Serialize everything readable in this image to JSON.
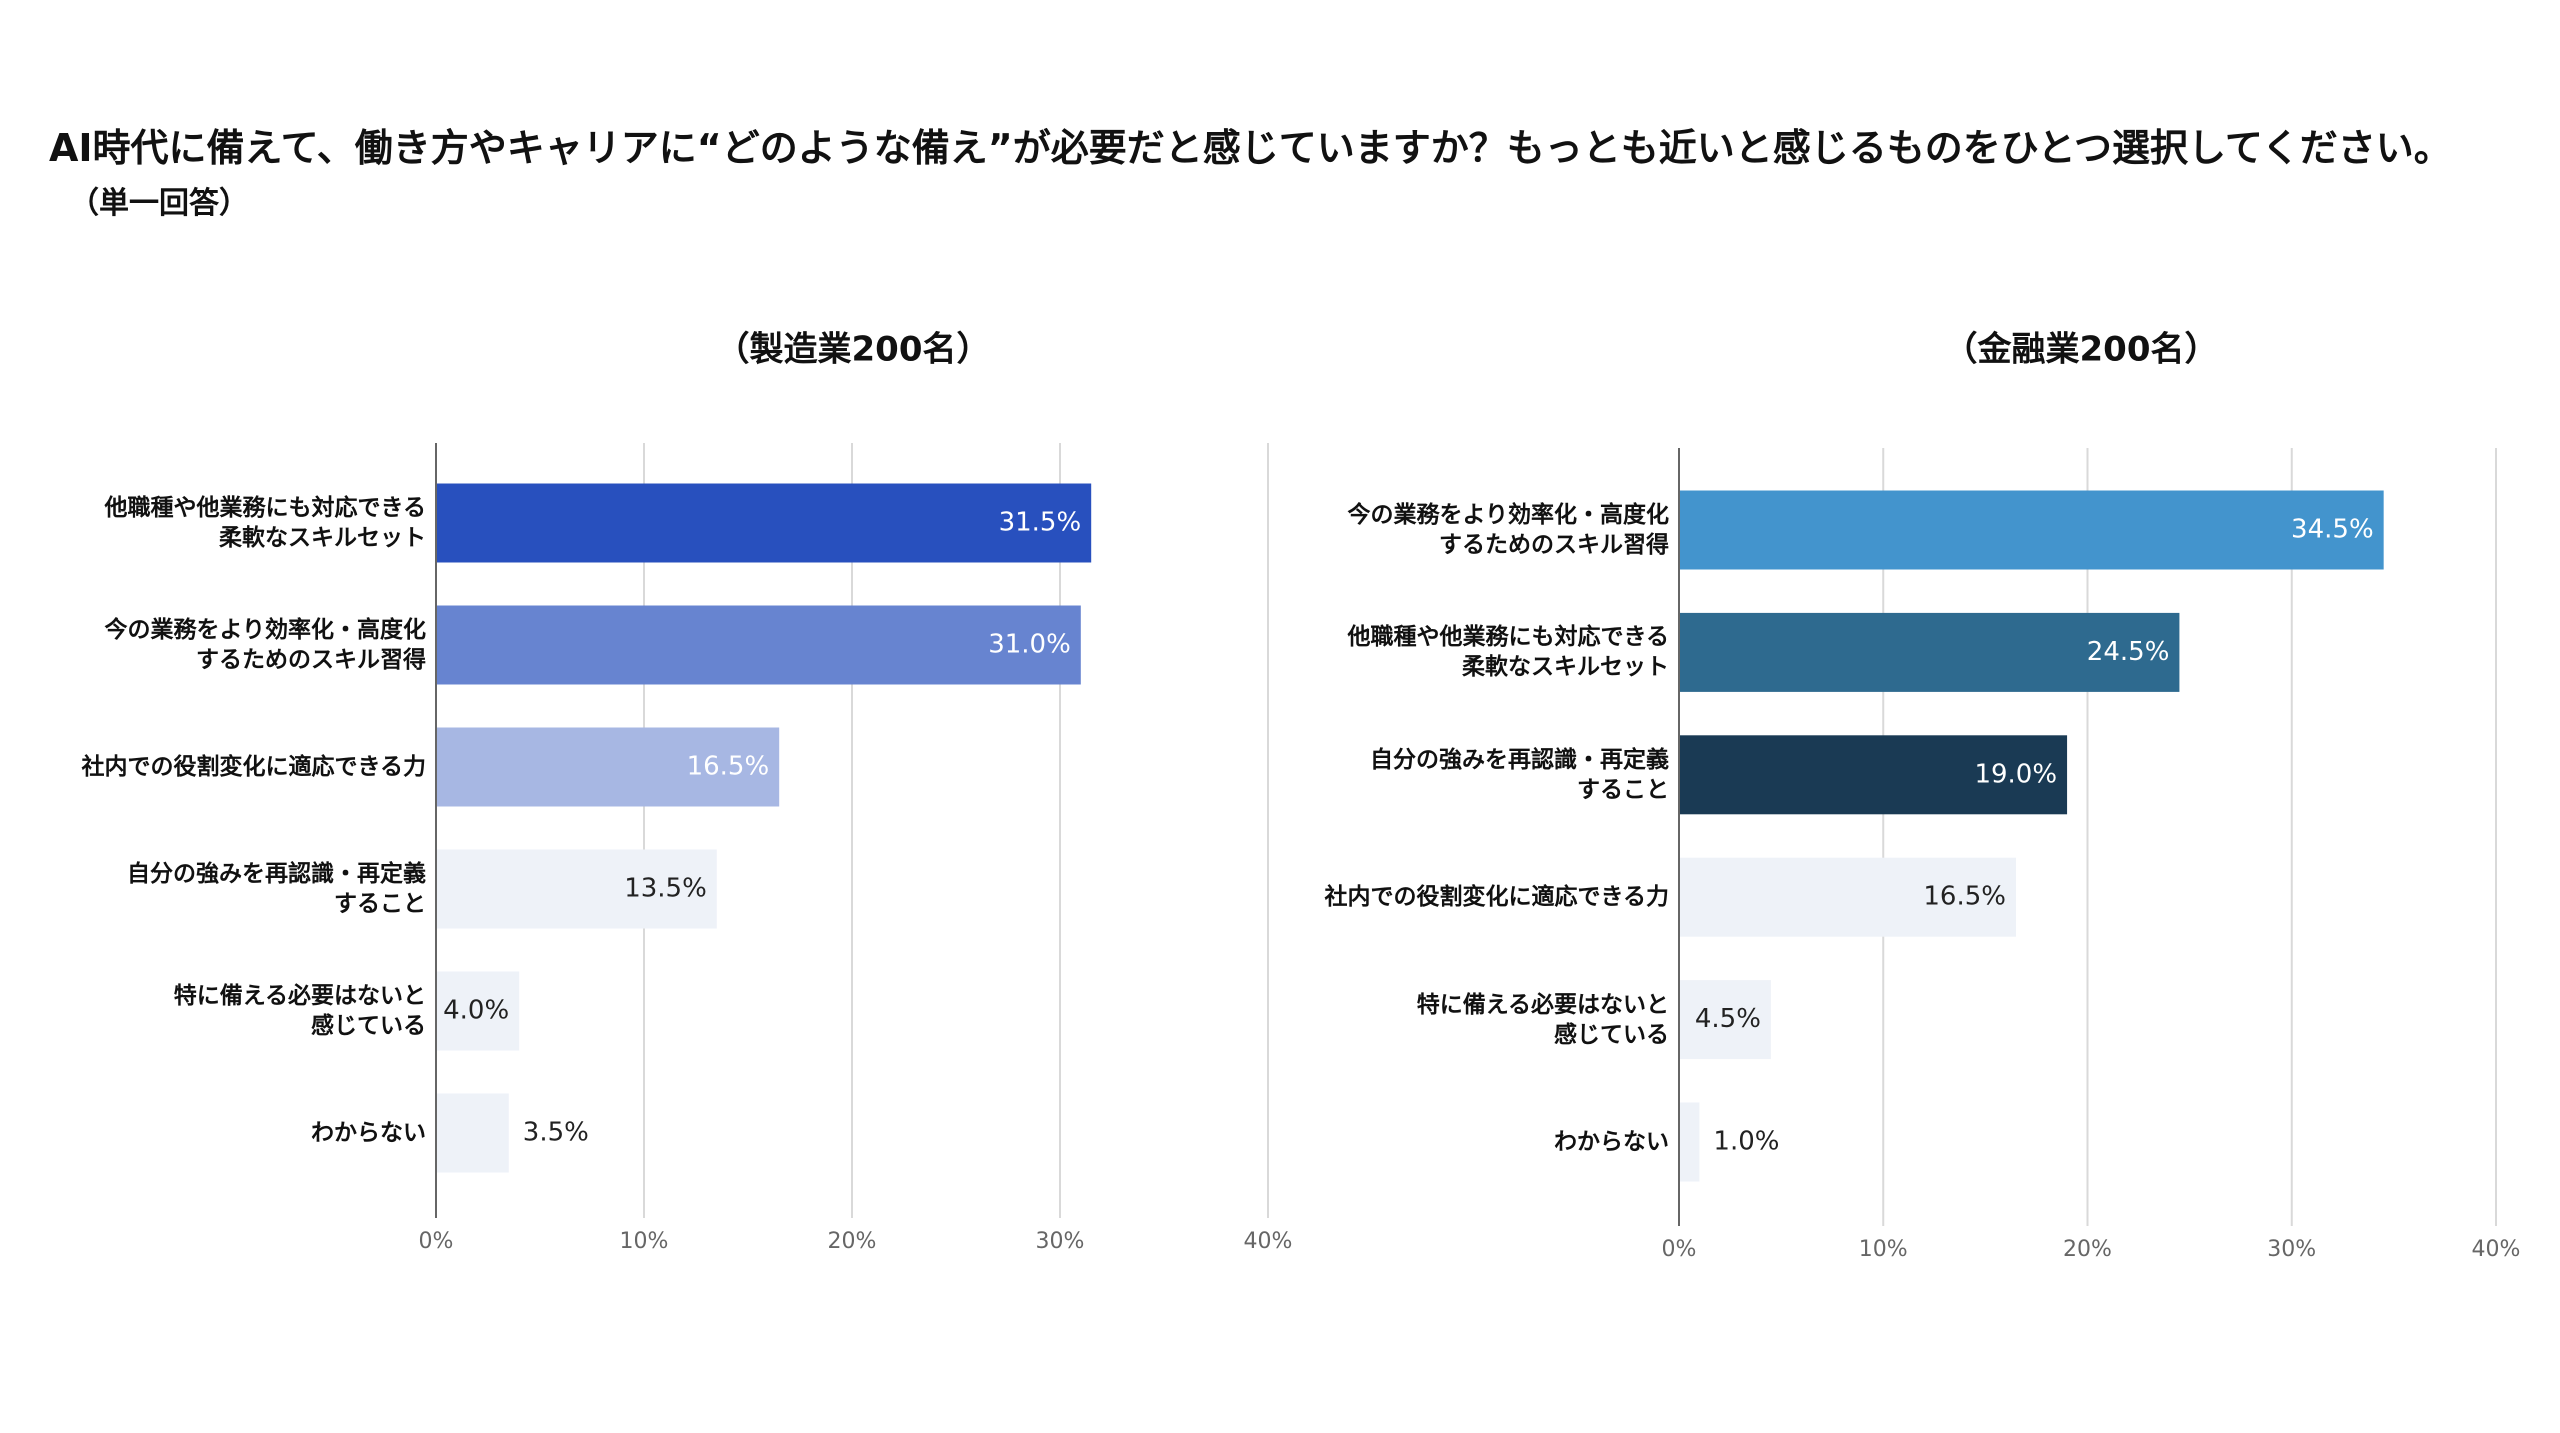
{
  "title": "AI時代に備えて、働き方やキャリアに“どのような備え”が必要だと感じていますか？もっとも近いと感じるものをひとつ選択してください。",
  "note": "（単一回答）",
  "chart_data": [
    {
      "type": "bar",
      "orientation": "horizontal",
      "title": "（製造業200名）",
      "categories": [
        "他職種や他業務にも対応できる\n柔軟なスキルセット",
        "今の業務をより効率化・高度化\nするためのスキル習得",
        "社内での役割変化に適応できる力",
        "自分の強みを再認識・再定義\nすること",
        "特に備える必要はないと\n感じている",
        "わからない"
      ],
      "values": [
        31.5,
        31.0,
        16.5,
        13.5,
        4.0,
        3.5
      ],
      "value_labels": [
        "31.5%",
        "31.0%",
        "16.5%",
        "13.5%",
        "4.0%",
        "3.5%"
      ],
      "colors": [
        "#2850be",
        "#6784d0",
        "#a7b7e3",
        "#eef2f8",
        "#eef2f8",
        "#eef2f8"
      ],
      "xlim": [
        0,
        40
      ],
      "xticks": [
        {
          "value": 0,
          "label": "0%"
        },
        {
          "value": 10,
          "label": "10%"
        },
        {
          "value": 20,
          "label": "20%"
        },
        {
          "value": 30,
          "label": "30%"
        },
        {
          "value": 40,
          "label": "40%"
        }
      ],
      "grid": true
    },
    {
      "type": "bar",
      "orientation": "horizontal",
      "title": "（金融業200名）",
      "categories": [
        "今の業務をより効率化・高度化\nするためのスキル習得",
        "他職種や他業務にも対応できる\n柔軟なスキルセット",
        "自分の強みを再認識・再定義\nすること",
        "社内での役割変化に適応できる力",
        "特に備える必要はないと\n感じている",
        "わからない"
      ],
      "values": [
        34.5,
        24.5,
        19.0,
        16.5,
        4.5,
        1.0
      ],
      "value_labels": [
        "34.5%",
        "24.5%",
        "19.0%",
        "16.5%",
        "4.5%",
        "1.0%"
      ],
      "colors": [
        "#4394cd",
        "#2e6a8f",
        "#1a3a54",
        "#eef2f8",
        "#eef2f8",
        "#eef2f8"
      ],
      "xlim": [
        0,
        40
      ],
      "xticks": [
        {
          "value": 0,
          "label": "0%"
        },
        {
          "value": 10,
          "label": "10%"
        },
        {
          "value": 20,
          "label": "20%"
        },
        {
          "value": 30,
          "label": "30%"
        },
        {
          "value": 40,
          "label": "40%"
        }
      ],
      "grid": true
    }
  ]
}
